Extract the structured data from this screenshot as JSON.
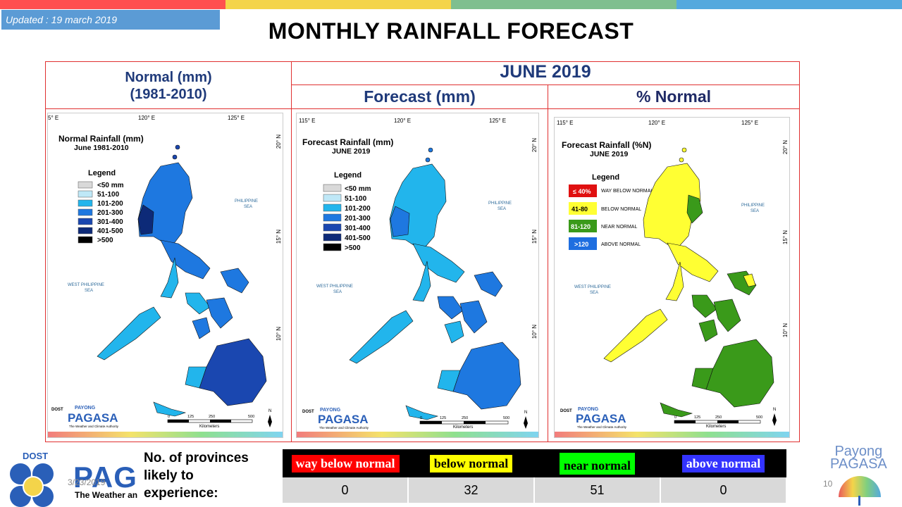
{
  "updated": "Updated : 19 march 2019",
  "title": "MONTHLY RAINFALL FORECAST",
  "headers": {
    "normal_line1": "Normal (mm)",
    "normal_line2": "(1981-2010)",
    "month": "JUNE 2019",
    "forecast": "Forecast (mm)",
    "pct_normal": "% Normal"
  },
  "maps": [
    {
      "title": "Normal Rainfall (mm)",
      "subtitle": "June 1981-2010",
      "legend_title": "Legend",
      "legend": [
        {
          "label": "<50 mm",
          "color": "#d9d9d9"
        },
        {
          "label": "51-100",
          "color": "#bfe8f7"
        },
        {
          "label": "101-200",
          "color": "#22b5ec"
        },
        {
          "label": "201-300",
          "color": "#1e78e0"
        },
        {
          "label": "301-400",
          "color": "#1a47b0"
        },
        {
          "label": "401-500",
          "color": "#0d2a78"
        },
        {
          "label": ">500",
          "color": "#000000"
        }
      ]
    },
    {
      "title": "Forecast Rainfall (mm)",
      "subtitle": "JUNE 2019",
      "legend_title": "Legend",
      "legend": [
        {
          "label": "<50 mm",
          "color": "#d9d9d9"
        },
        {
          "label": "51-100",
          "color": "#bfe8f7"
        },
        {
          "label": "101-200",
          "color": "#22b5ec"
        },
        {
          "label": "201-300",
          "color": "#1e78e0"
        },
        {
          "label": "301-400",
          "color": "#1a47b0"
        },
        {
          "label": "401-500",
          "color": "#0d2a78"
        },
        {
          "label": ">500",
          "color": "#000000"
        }
      ]
    },
    {
      "title": "Forecast Rainfall (%N)",
      "subtitle": "JUNE 2019",
      "legend_title": "Legend",
      "legend": [
        {
          "label": "≤ 40%",
          "desc": "WAY BELOW NORMAL",
          "color": "#e01010"
        },
        {
          "label": "41-80",
          "desc": "BELOW NORMAL",
          "color": "#ffff33"
        },
        {
          "label": "81-120",
          "desc": "NEAR NORMAL",
          "color": "#3a9a1a"
        },
        {
          "label": ">120",
          "desc": "ABOVE NORMAL",
          "color": "#1e6ee0"
        }
      ]
    }
  ],
  "map_labels": {
    "lon_115": "115° E",
    "lon_120": "120° E",
    "lon_125": "125° E",
    "lon_115_cut": "5° E",
    "lat_20": "20° N",
    "lat_15": "15° N",
    "lat_10": "10° N",
    "sea_east_1": "PHILIPPINE",
    "sea_east_2": "SEA",
    "sea_west_1": "WEST PHILIPPINE",
    "sea_west_2": "SEA",
    "scale": [
      "0",
      "125",
      "250",
      "500"
    ],
    "km": "Kilometers",
    "north": "N",
    "dost": "DOST",
    "payong": "PAYONG",
    "pagasa": "PAGASA",
    "tagline": "The Weather and Climate Authority"
  },
  "bottom": {
    "label": "No. of provinces likely to experience:",
    "label_lines": [
      "No. of provinces",
      "likely  to",
      "experience:"
    ],
    "categories": [
      {
        "label": "way below normal",
        "bg": "#ff0000",
        "fg": "#ffffff",
        "count": "0"
      },
      {
        "label": "below normal",
        "bg": "#ffff00",
        "fg": "#000000",
        "count": "32"
      },
      {
        "label": "near normal",
        "bg": "#00ff00",
        "fg": "#000000",
        "count": "51"
      },
      {
        "label": "above normal",
        "bg": "#3333ff",
        "fg": "#ffffff",
        "count": "0"
      }
    ]
  },
  "footer": {
    "dost": "DOST",
    "pag": "PAG",
    "date": "3/23/2019",
    "tagline": "The Weather an",
    "page": "10",
    "payong1": "Payong",
    "payong2": "PAGASA"
  },
  "colors": {
    "topbar": [
      "#ff4f4f",
      "#f4d44a",
      "#7fbf8f",
      "#55a9de"
    ],
    "header_text": "#1f3a7a",
    "frame": "#e03030"
  }
}
